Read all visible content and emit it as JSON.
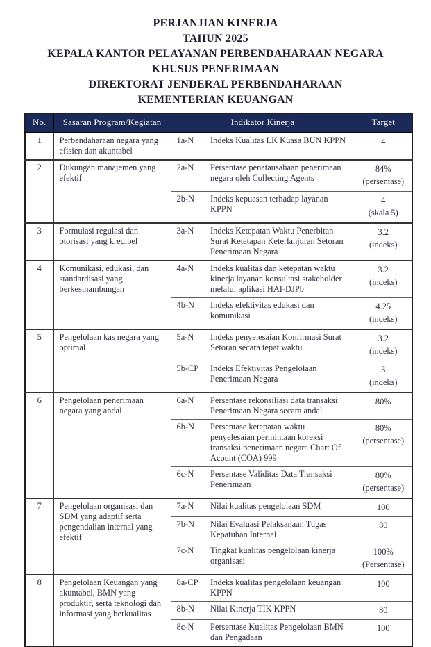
{
  "document": {
    "title_lines": [
      "PERJANJIAN KINERJA",
      "TAHUN 2025",
      "KEPALA KANTOR PELAYANAN PERBENDAHARAAN NEGARA",
      "KHUSUS PENERIMAAN",
      "DIREKTORAT JENDERAL PERBENDAHARAAN",
      "KEMENTERIAN KEUANGAN"
    ]
  },
  "table": {
    "headers": {
      "no": "No.",
      "sasaran": "Sasaran Program/Kegiatan",
      "indikator": "Indikator Kinerja",
      "target": "Target"
    },
    "groups": [
      {
        "no": "1",
        "sasaran": "Perbendaharaan negara yang efisien dan akuntabel",
        "indicators": [
          {
            "code": "1a-N",
            "text": "Indeks Kualitas LK Kuasa BUN KPPN",
            "target": "4"
          }
        ]
      },
      {
        "no": "2",
        "sasaran": "Dukungan manajemen yang efektif",
        "indicators": [
          {
            "code": "2a-N",
            "text": "Persentase penatausahaan penerimaan negara oleh Collecting Agents",
            "target": "84%",
            "target_note": "(persentase)"
          },
          {
            "code": "2b-N",
            "text": "Indeks kepuasan terhadap layanan KPPN",
            "target": "4",
            "target_note": "(skala 5)"
          }
        ]
      },
      {
        "no": "3",
        "sasaran": "Formulasi regulasi dan otorisasi yang kredibel",
        "indicators": [
          {
            "code": "3a-N",
            "text": "Indeks Ketepatan Waktu Penerbitan Surat Ketetapan Keterlanjuran Setoran Penerimaan Negara",
            "target": "3.2",
            "target_note": "(indeks)"
          }
        ]
      },
      {
        "no": "4",
        "sasaran": "Komunikasi, edukasi, dan standardisasi yang berkesinambungan",
        "indicators": [
          {
            "code": "4a-N",
            "text": "Indeks kualitas dan ketepatan waktu kinerja layanan konsultasi stakeholder melalui aplikasi HAI-DJPb",
            "target": "3.2",
            "target_note": "(indeks)"
          },
          {
            "code": "4b-N",
            "text": "Indeks efektivitas edukasi dan komunikasi",
            "target": "4.25",
            "target_note": "(indeks)"
          }
        ]
      },
      {
        "no": "5",
        "sasaran": "Pengelolaan kas negara yang optimal",
        "indicators": [
          {
            "code": "5a-N",
            "text": "Indeks penyelesaian Konfirmasi Surat Setoran secara tepat waktu",
            "target": "3.2",
            "target_note": "(indeks)"
          },
          {
            "code": "5b-CP",
            "text": "Indeks Efektivitas Pengelolaan Penerimaan Negara",
            "target": "3",
            "target_note": "(indeks)"
          }
        ]
      },
      {
        "no": "6",
        "sasaran": "Pengelolaan penerimaan negara yang andal",
        "indicators": [
          {
            "code": "6a-N",
            "text": "Persentase rekonsiliasi data transaksi Penerimaan Negara secara andal",
            "target": "80%"
          },
          {
            "code": "6b-N",
            "text": "Persentase ketepatan waktu penyelesaian permintaan koreksi transaksi penerimaan negara Chart Of Acount (COA) 999",
            "target": "80%",
            "target_note": "(persentase)"
          },
          {
            "code": "6c-N",
            "text": "Persentase Validitas Data Transaksi Penerimaan",
            "target": "80%",
            "target_note": "(persentase)"
          }
        ]
      },
      {
        "no": "7",
        "sasaran": "Pengelolaan organisasi dan SDM yang adaptif serta pengendalian internal yang efektif",
        "indicators": [
          {
            "code": "7a-N",
            "text": "Nilai kualitas pengelolaan SDM",
            "target": "100"
          },
          {
            "code": "7b-N",
            "text": "Nilai Evaluasi Pelaksanaan Tugas Kepatuhan Internal",
            "target": "80"
          },
          {
            "code": "7c-N",
            "text": "Tingkat kualitas pengelolaan kinerja organisasi",
            "target": "100%",
            "target_note": "(Persentase)"
          }
        ]
      },
      {
        "no": "8",
        "sasaran": "Pengelolaan Keuangan yang akuntabel, BMN yang produktif, serta teknologi dan informasi yang berkualitas",
        "indicators": [
          {
            "code": "8a-CP",
            "text": "Indeks kualitas pengelolaan keuangan KPPN",
            "target": "100"
          },
          {
            "code": "8b-N",
            "text": "Nilai Kinerja TIK KPPN",
            "target": "80"
          },
          {
            "code": "8c-N",
            "text": "Persentase Kualitas Pengelolaan BMN dan Pengadaan",
            "target": "100"
          }
        ]
      }
    ]
  },
  "colors": {
    "header_bg": "#1b2a58",
    "header_text": "#ffffff",
    "border": "#333333",
    "text": "#2e2e3e"
  }
}
